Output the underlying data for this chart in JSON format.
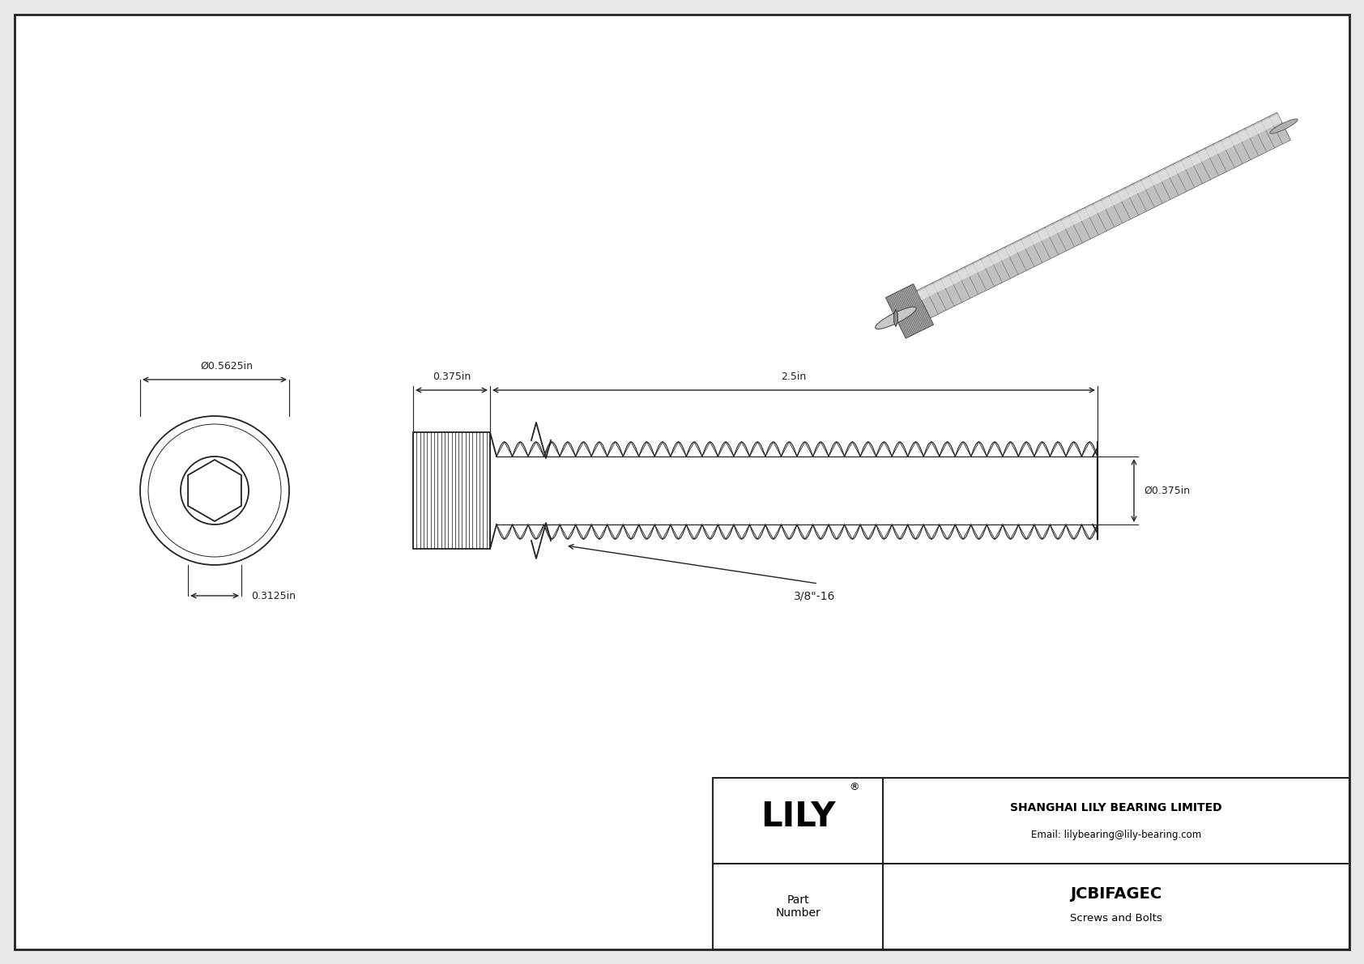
{
  "bg_color": "#e8e8e8",
  "drawing_bg": "#ffffff",
  "border_color": "#222222",
  "line_color": "#222222",
  "title_company": "SHANGHAI LILY BEARING LIMITED",
  "title_email": "Email: lilybearing@lily-bearing.com",
  "part_number": "JCBIFAGEC",
  "part_category": "Screws and Bolts",
  "part_label": "Part\nNumber",
  "logo_text": "LILY",
  "logo_sup": "®",
  "dim_outer_dia": "Ø0.5625in",
  "dim_hex_dia": "0.3125in",
  "dim_head_len": "0.375in",
  "dim_shaft_len": "2.5in",
  "dim_shaft_dia": "Ø0.375in",
  "dim_thread": "3/8\"-16"
}
